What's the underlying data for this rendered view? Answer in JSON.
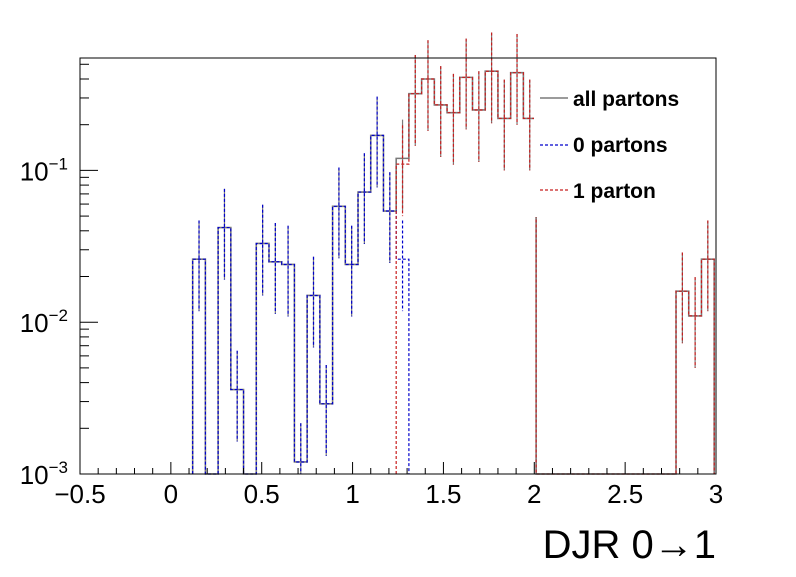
{
  "chart_data": {
    "type": "histogram",
    "xlabel": "DJR 0→1",
    "ylabel": "",
    "title": "",
    "xlim": [
      -0.5,
      3.0
    ],
    "ylim": [
      0.001,
      0.55
    ],
    "yscale": "log",
    "xticks": [
      -0.5,
      0,
      0.5,
      1,
      1.5,
      2,
      2.5,
      3
    ],
    "xtick_labels": [
      "−0.5",
      "0",
      "0.5",
      "1",
      "1.5",
      "2",
      "2.5",
      "3"
    ],
    "yticks": [
      0.001,
      0.01,
      0.1
    ],
    "ytick_labels": [
      {
        "base": "10",
        "exp": "−3"
      },
      {
        "base": "10",
        "exp": "−2"
      },
      {
        "base": "10",
        "exp": "−1"
      }
    ],
    "bin_width": 0.07,
    "legend_placement": "top-right",
    "series": [
      {
        "name": "all partons",
        "style": "solid",
        "color": "#7a7a7a",
        "bins": [
          [
            0.12,
            0.026
          ],
          [
            0.19,
            0.001
          ],
          [
            0.26,
            0.042
          ],
          [
            0.33,
            0.0036
          ],
          [
            0.4,
            0.001
          ],
          [
            0.47,
            0.033
          ],
          [
            0.54,
            0.025
          ],
          [
            0.61,
            0.024
          ],
          [
            0.68,
            0.0012
          ],
          [
            0.75,
            0.015
          ],
          [
            0.82,
            0.0029
          ],
          [
            0.89,
            0.058
          ],
          [
            0.96,
            0.024
          ],
          [
            1.03,
            0.072
          ],
          [
            1.1,
            0.17
          ],
          [
            1.17,
            0.054
          ],
          [
            1.24,
            0.12
          ],
          [
            1.31,
            0.32
          ],
          [
            1.38,
            0.4
          ],
          [
            1.45,
            0.27
          ],
          [
            1.52,
            0.24
          ],
          [
            1.59,
            0.41
          ],
          [
            1.66,
            0.25
          ],
          [
            1.73,
            0.45
          ],
          [
            1.8,
            0.22
          ],
          [
            1.87,
            0.44
          ],
          [
            1.94,
            0.22
          ],
          [
            2.01,
            0.001
          ],
          [
            2.08,
            0.001
          ],
          [
            2.15,
            0.001
          ],
          [
            2.22,
            0.001
          ],
          [
            2.29,
            0.001
          ],
          [
            2.36,
            0.001
          ],
          [
            2.43,
            0.001
          ],
          [
            2.5,
            0.001
          ],
          [
            2.57,
            0.001
          ],
          [
            2.64,
            0.001
          ],
          [
            2.71,
            0.001
          ],
          [
            2.78,
            0.016
          ],
          [
            2.85,
            0.011
          ],
          [
            2.92,
            0.026
          ]
        ]
      },
      {
        "name": "0 partons",
        "style": "dashed",
        "color": "#0000cc",
        "bins": [
          [
            0.12,
            0.026
          ],
          [
            0.19,
            0.001
          ],
          [
            0.26,
            0.042
          ],
          [
            0.33,
            0.0036
          ],
          [
            0.4,
            0.001
          ],
          [
            0.47,
            0.033
          ],
          [
            0.54,
            0.025
          ],
          [
            0.61,
            0.024
          ],
          [
            0.68,
            0.0012
          ],
          [
            0.75,
            0.015
          ],
          [
            0.82,
            0.0029
          ],
          [
            0.89,
            0.058
          ],
          [
            0.96,
            0.024
          ],
          [
            1.03,
            0.072
          ],
          [
            1.1,
            0.17
          ],
          [
            1.17,
            0.054
          ],
          [
            1.24,
            0.026
          ]
        ]
      },
      {
        "name": "1 parton",
        "style": "dashed",
        "color": "#c81e1e",
        "bins": [
          [
            1.24,
            0.11
          ],
          [
            1.31,
            0.32
          ],
          [
            1.38,
            0.4
          ],
          [
            1.45,
            0.27
          ],
          [
            1.52,
            0.24
          ],
          [
            1.59,
            0.41
          ],
          [
            1.66,
            0.25
          ],
          [
            1.73,
            0.45
          ],
          [
            1.8,
            0.22
          ],
          [
            1.87,
            0.44
          ],
          [
            1.94,
            0.22
          ],
          [
            2.01,
            0.001
          ],
          [
            2.08,
            0.001
          ],
          [
            2.15,
            0.001
          ],
          [
            2.22,
            0.001
          ],
          [
            2.29,
            0.001
          ],
          [
            2.36,
            0.001
          ],
          [
            2.43,
            0.001
          ],
          [
            2.5,
            0.001
          ],
          [
            2.57,
            0.001
          ],
          [
            2.64,
            0.001
          ],
          [
            2.71,
            0.001
          ],
          [
            2.78,
            0.016
          ],
          [
            2.85,
            0.011
          ],
          [
            2.92,
            0.026
          ]
        ]
      }
    ]
  }
}
